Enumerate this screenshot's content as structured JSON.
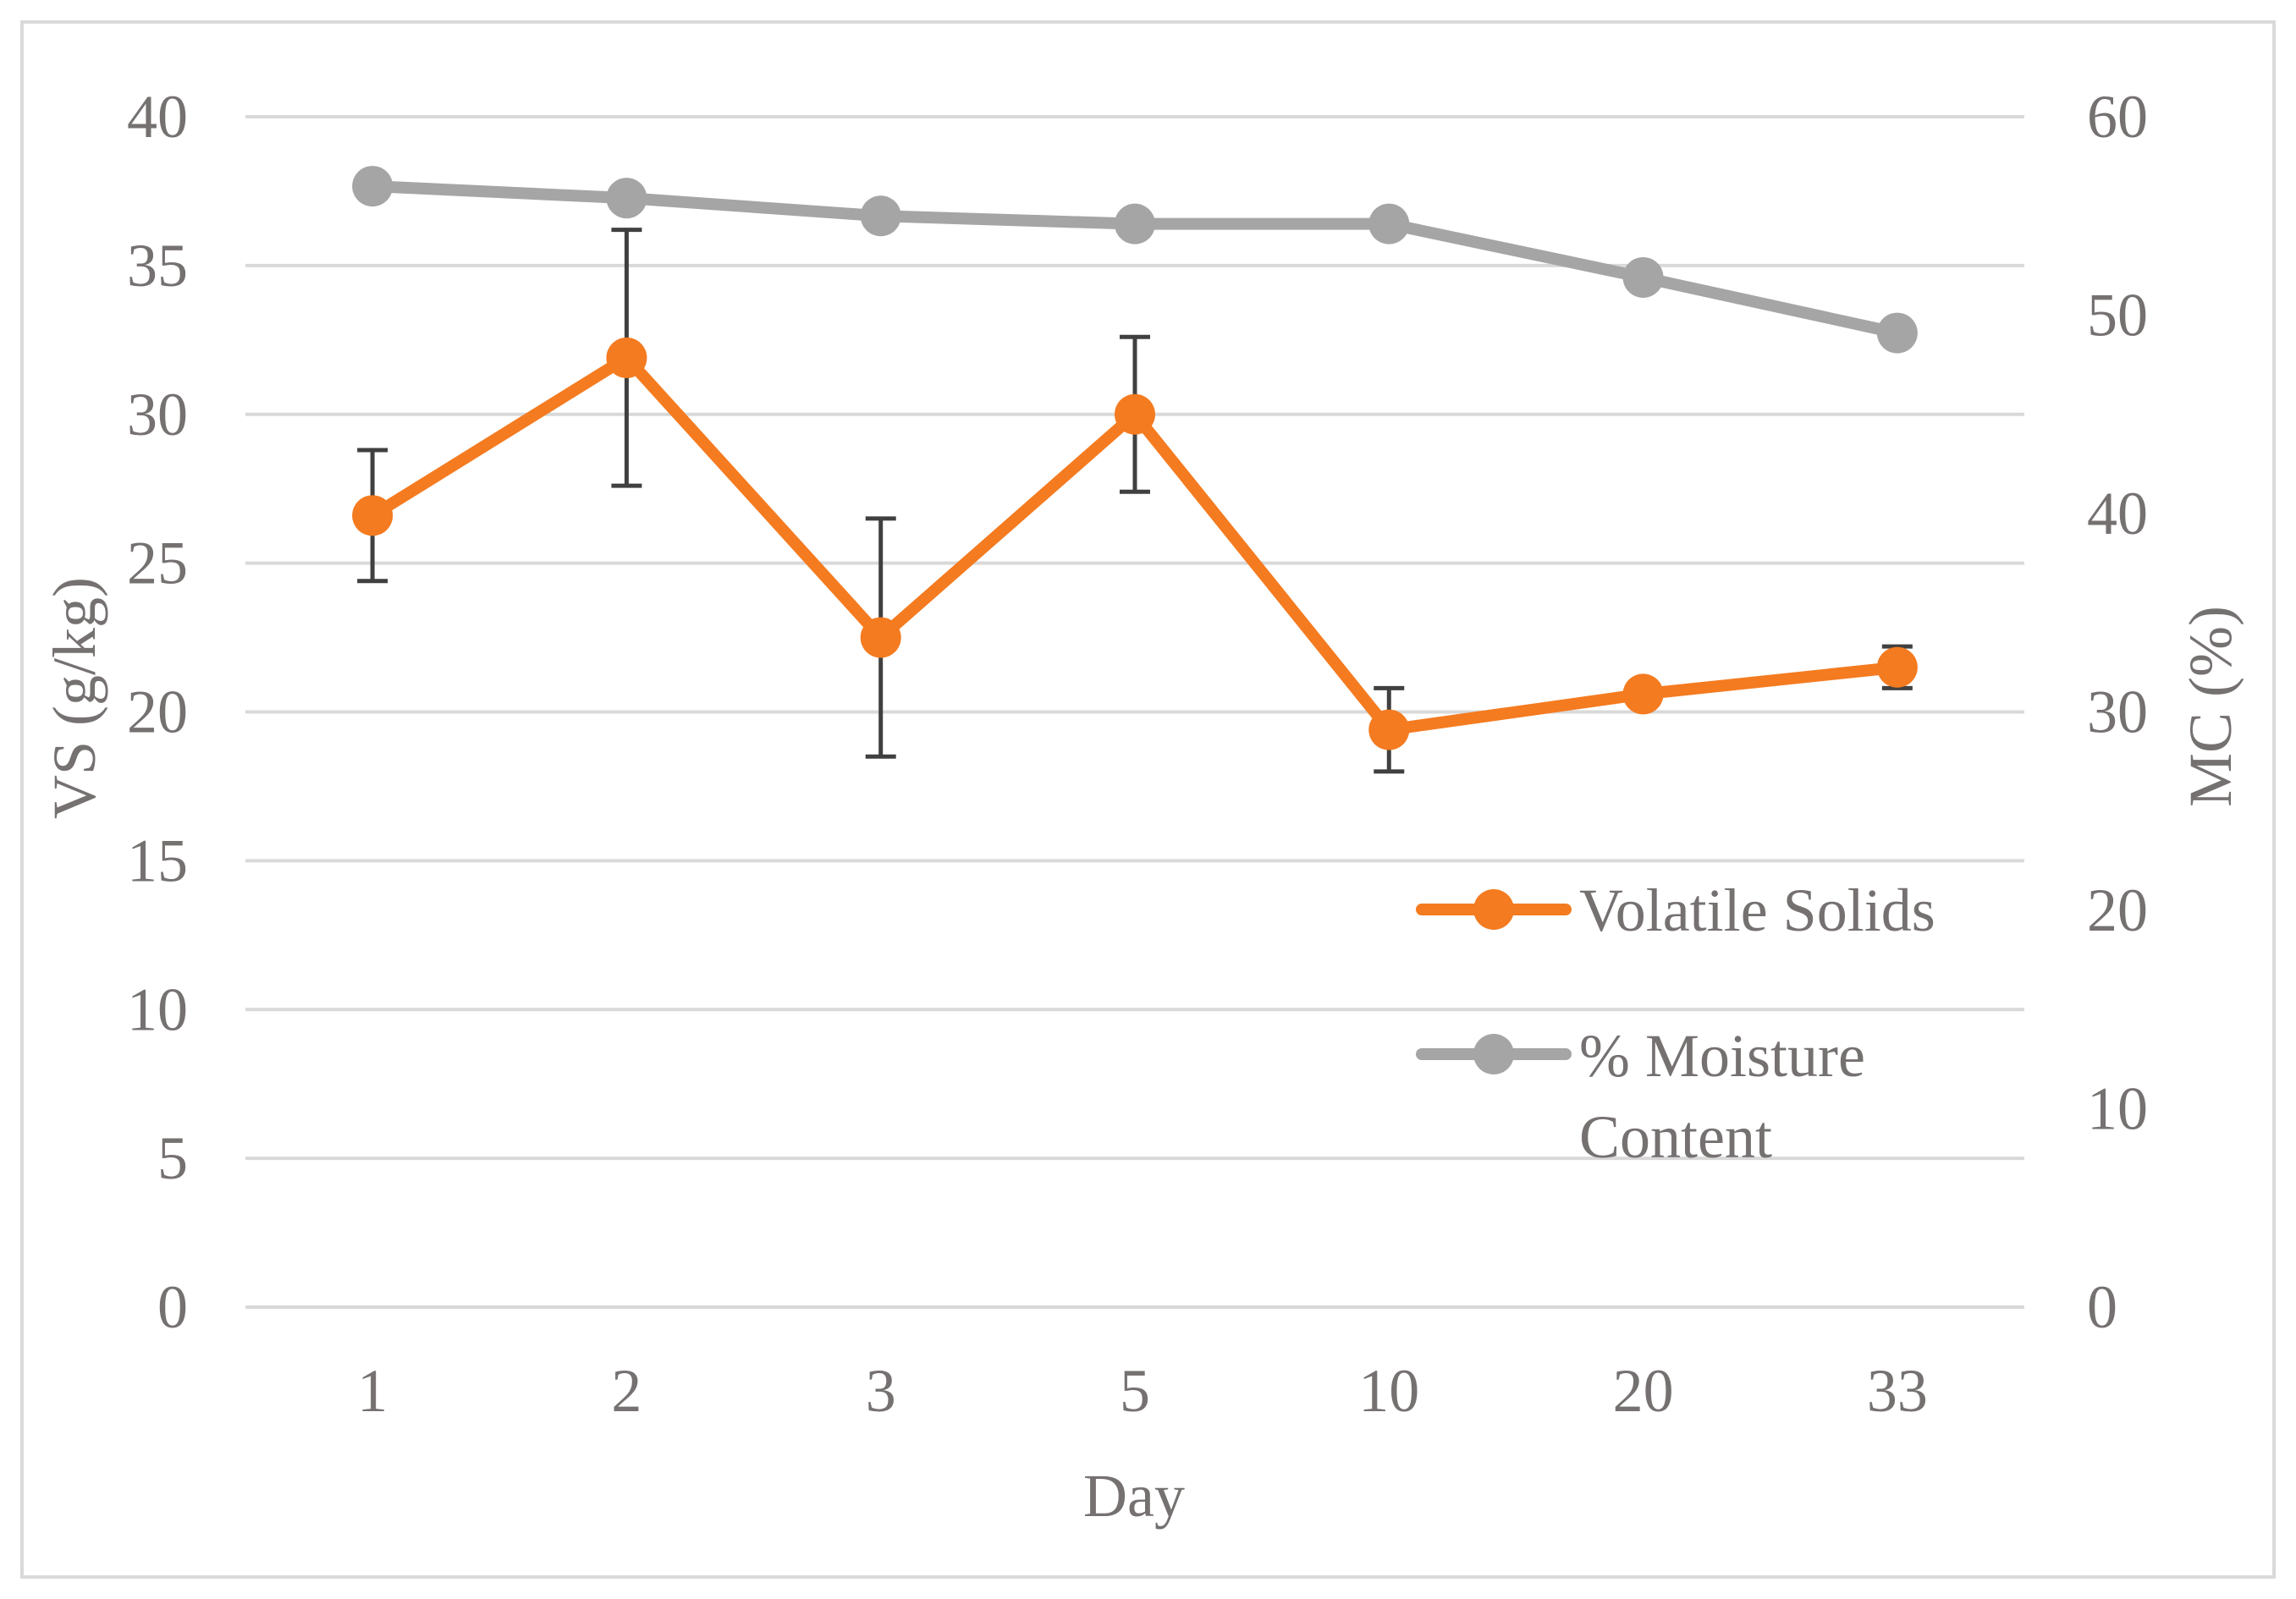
{
  "chart_data": {
    "type": "line",
    "categories": [
      "1",
      "2",
      "3",
      "5",
      "10",
      "20",
      "33"
    ],
    "xlabel": "Day",
    "ylabel_left": "VS (g/kg)",
    "ylabel_right": "MC (%)",
    "ylim_left": [
      0,
      40
    ],
    "ylim_right": [
      0,
      60
    ],
    "yticks_left": [
      "0",
      "5",
      "10",
      "15",
      "20",
      "25",
      "30",
      "35",
      "40"
    ],
    "yticks_right": [
      "0",
      "10",
      "20",
      "30",
      "40",
      "50",
      "60"
    ],
    "grid": true,
    "legend_position": "right",
    "series": [
      {
        "name": "Volatile Solids",
        "axis": "left",
        "color": "#F47B20",
        "values": [
          26.6,
          31.9,
          22.5,
          30.0,
          19.4,
          20.6,
          21.5
        ],
        "error": [
          2.2,
          4.3,
          4.0,
          2.6,
          1.4,
          0.3,
          0.7
        ]
      },
      {
        "name": "% Moisture Content",
        "axis": "right",
        "color": "#A5A5A5",
        "values": [
          56.5,
          55.9,
          55.0,
          54.6,
          54.6,
          51.9,
          49.1
        ]
      }
    ],
    "legend_labels": [
      "Volatile Solids",
      "% Moisture",
      "Content"
    ]
  },
  "colors": {
    "axis_text": "#767171",
    "grid": "#D9D9D9",
    "error_bar": "#404040",
    "frame": "#D9D9D9"
  }
}
